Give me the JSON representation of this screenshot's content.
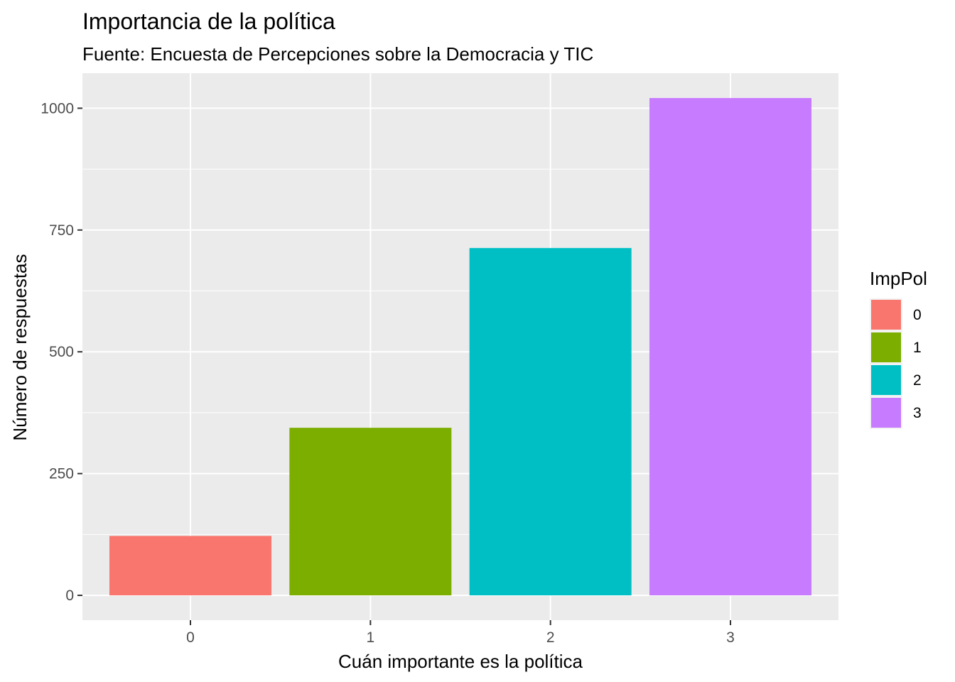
{
  "chart_data": {
    "type": "bar",
    "title": "Importancia de la política",
    "subtitle": "Fuente: Encuesta de Percepciones sobre la Democracia y TIC",
    "xlabel": "Cuán importante es la política",
    "ylabel": "Número de respuestas",
    "categories": [
      "0",
      "1",
      "2",
      "3"
    ],
    "values": [
      122,
      344,
      713,
      1021
    ],
    "colors": [
      "#F8766D",
      "#7CAE00",
      "#00BFC4",
      "#C77CFF"
    ],
    "yticks": [
      0,
      250,
      500,
      750,
      1000
    ],
    "yticklabels": [
      "0",
      "250",
      "500",
      "750",
      "1000"
    ],
    "ylim": [
      -51,
      1072
    ],
    "grid": true,
    "panel_background": "#EBEBEB",
    "legend": {
      "title": "ImpPol",
      "position": "right",
      "entries": [
        "0",
        "1",
        "2",
        "3"
      ]
    }
  }
}
